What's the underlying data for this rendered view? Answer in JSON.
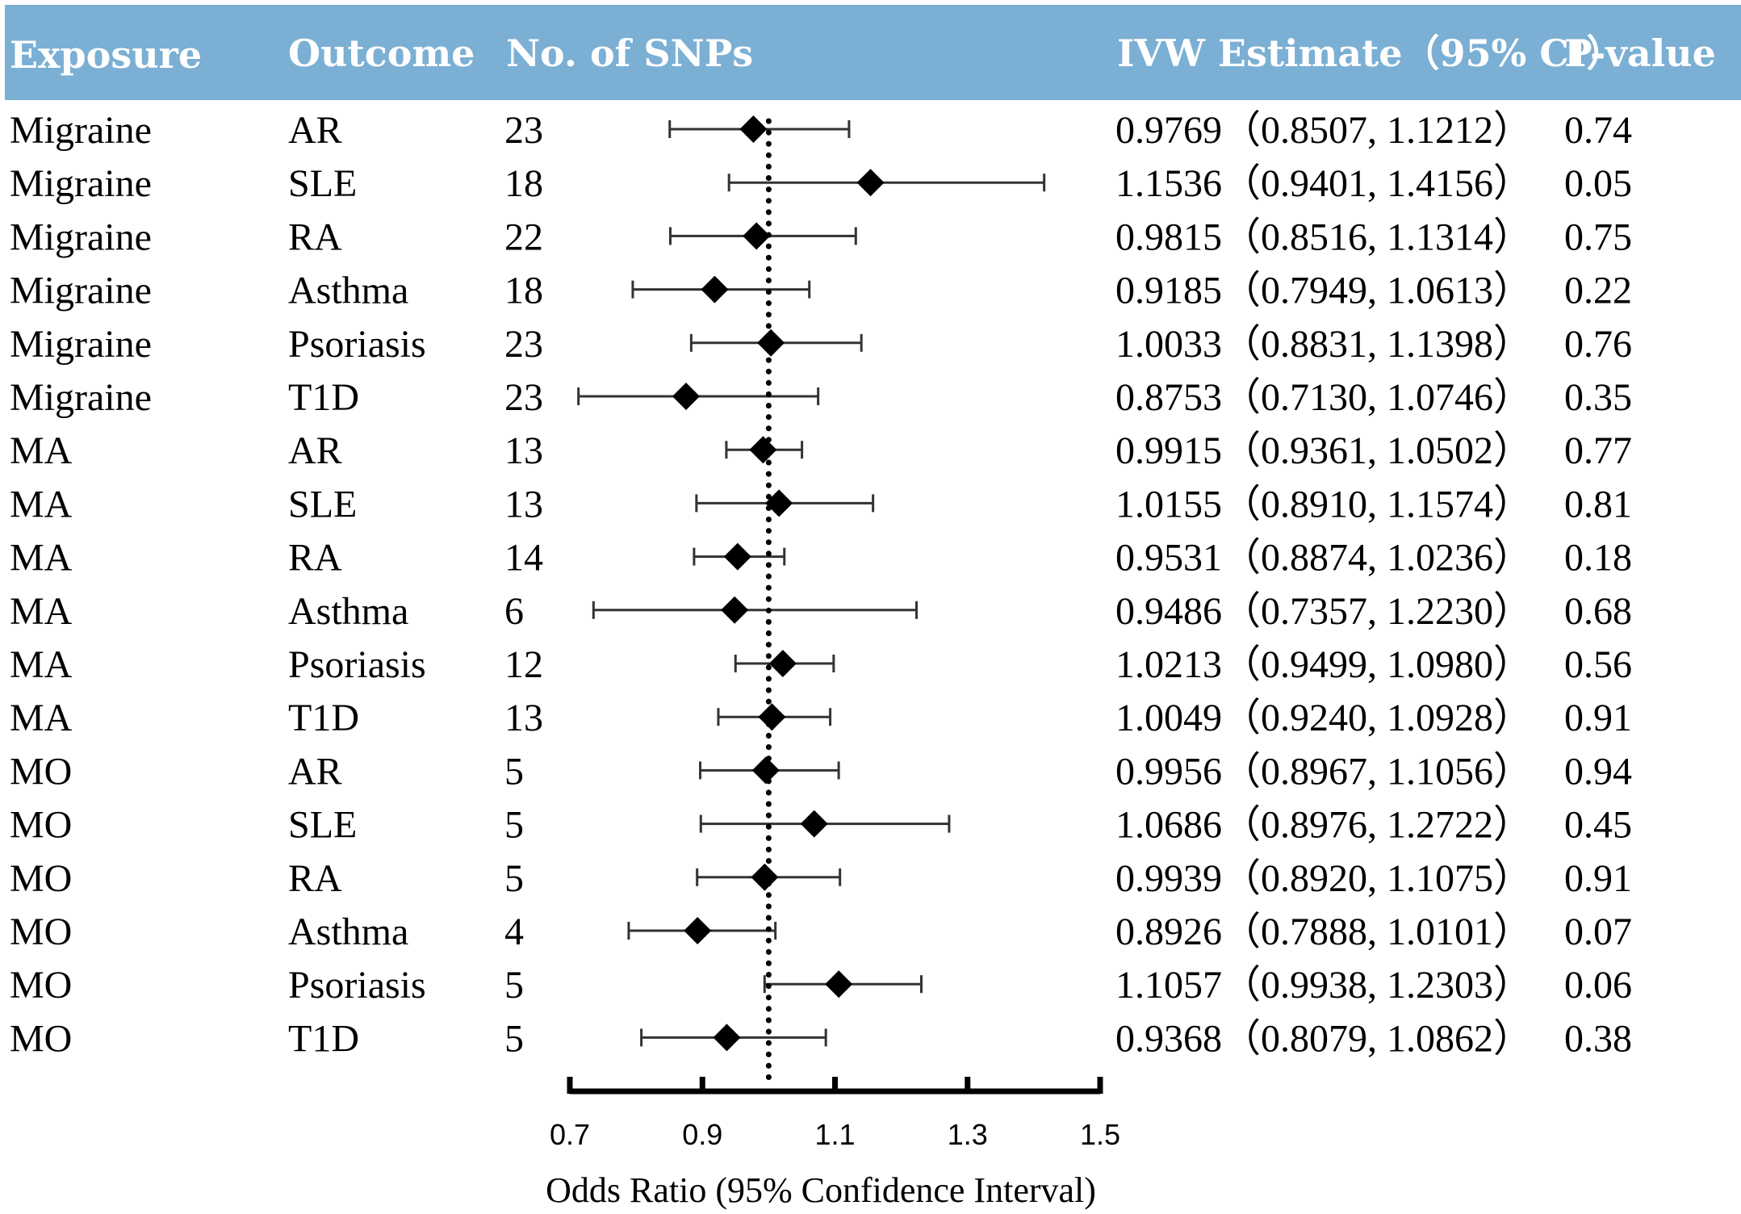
{
  "header": {
    "exposure": "Exposure",
    "outcome": "Outcome",
    "snps": "No. of SNPs",
    "estimate": "IVW Estimate（95% CI）",
    "pvalue": "P-value",
    "background": "#7bafd4"
  },
  "chart_data": {
    "type": "forest",
    "xlabel": "Odds Ratio (95% Confidence Interval)",
    "xlim": [
      0.7,
      1.5
    ],
    "xticks": [
      "0.7",
      "0.9",
      "1.1",
      "1.3",
      "1.5"
    ],
    "reference_line": 1.0,
    "rows": [
      {
        "exposure": "Migraine",
        "outcome": "AR",
        "snps": "23",
        "or": 0.9769,
        "lo": 0.8507,
        "hi": 1.1212,
        "estimate_text": "0.9769（0.8507, 1.1212）",
        "p": "0.74"
      },
      {
        "exposure": "Migraine",
        "outcome": "SLE",
        "snps": "18",
        "or": 1.1536,
        "lo": 0.9401,
        "hi": 1.4156,
        "estimate_text": "1.1536（0.9401, 1.4156）",
        "p": "0.05"
      },
      {
        "exposure": "Migraine",
        "outcome": "RA",
        "snps": "22",
        "or": 0.9815,
        "lo": 0.8516,
        "hi": 1.1314,
        "estimate_text": "0.9815（0.8516, 1.1314）",
        "p": "0.75"
      },
      {
        "exposure": "Migraine",
        "outcome": "Asthma",
        "snps": "18",
        "or": 0.9185,
        "lo": 0.7949,
        "hi": 1.0613,
        "estimate_text": "0.9185（0.7949, 1.0613）",
        "p": "0.22"
      },
      {
        "exposure": "Migraine",
        "outcome": "Psoriasis",
        "snps": "23",
        "or": 1.0033,
        "lo": 0.8831,
        "hi": 1.1398,
        "estimate_text": "1.0033（0.8831, 1.1398）",
        "p": "0.76"
      },
      {
        "exposure": "Migraine",
        "outcome": "T1D",
        "snps": "23",
        "or": 0.8753,
        "lo": 0.713,
        "hi": 1.0746,
        "estimate_text": "0.8753（0.7130, 1.0746）",
        "p": "0.35"
      },
      {
        "exposure": "MA",
        "outcome": "AR",
        "snps": "13",
        "or": 0.9915,
        "lo": 0.9361,
        "hi": 1.0502,
        "estimate_text": "0.9915（0.9361, 1.0502）",
        "p": "0.77"
      },
      {
        "exposure": "MA",
        "outcome": "SLE",
        "snps": "13",
        "or": 1.0155,
        "lo": 0.891,
        "hi": 1.1574,
        "estimate_text": "1.0155（0.8910, 1.1574）",
        "p": "0.81"
      },
      {
        "exposure": "MA",
        "outcome": "RA",
        "snps": "14",
        "or": 0.9531,
        "lo": 0.8874,
        "hi": 1.0236,
        "estimate_text": "0.9531（0.8874, 1.0236）",
        "p": "0.18"
      },
      {
        "exposure": "MA",
        "outcome": "Asthma",
        "snps": "6",
        "or": 0.9486,
        "lo": 0.7357,
        "hi": 1.223,
        "estimate_text": "0.9486（0.7357, 1.2230）",
        "p": "0.68"
      },
      {
        "exposure": "MA",
        "outcome": "Psoriasis",
        "snps": "12",
        "or": 1.0213,
        "lo": 0.9499,
        "hi": 1.098,
        "estimate_text": "1.0213（0.9499, 1.0980）",
        "p": "0.56"
      },
      {
        "exposure": "MA",
        "outcome": "T1D",
        "snps": "13",
        "or": 1.0049,
        "lo": 0.924,
        "hi": 1.0928,
        "estimate_text": "1.0049（0.9240, 1.0928）",
        "p": "0.91"
      },
      {
        "exposure": "MO",
        "outcome": "AR",
        "snps": "5",
        "or": 0.9956,
        "lo": 0.8967,
        "hi": 1.1056,
        "estimate_text": "0.9956（0.8967, 1.1056）",
        "p": "0.94"
      },
      {
        "exposure": "MO",
        "outcome": "SLE",
        "snps": "5",
        "or": 1.0686,
        "lo": 0.8976,
        "hi": 1.2722,
        "estimate_text": "1.0686（0.8976, 1.2722）",
        "p": "0.45"
      },
      {
        "exposure": "MO",
        "outcome": "RA",
        "snps": "5",
        "or": 0.9939,
        "lo": 0.892,
        "hi": 1.1075,
        "estimate_text": "0.9939（0.8920, 1.1075）",
        "p": "0.91"
      },
      {
        "exposure": "MO",
        "outcome": "Asthma",
        "snps": "4",
        "or": 0.8926,
        "lo": 0.7888,
        "hi": 1.0101,
        "estimate_text": "0.8926（0.7888, 1.0101）",
        "p": "0.07"
      },
      {
        "exposure": "MO",
        "outcome": "Psoriasis",
        "snps": "5",
        "or": 1.1057,
        "lo": 0.9938,
        "hi": 1.2303,
        "estimate_text": "1.1057（0.9938, 1.2303）",
        "p": "0.06"
      },
      {
        "exposure": "MO",
        "outcome": "T1D",
        "snps": "5",
        "or": 0.9368,
        "lo": 0.8079,
        "hi": 1.0862,
        "estimate_text": "0.9368（0.8079, 1.0862）",
        "p": "0.38"
      }
    ]
  }
}
